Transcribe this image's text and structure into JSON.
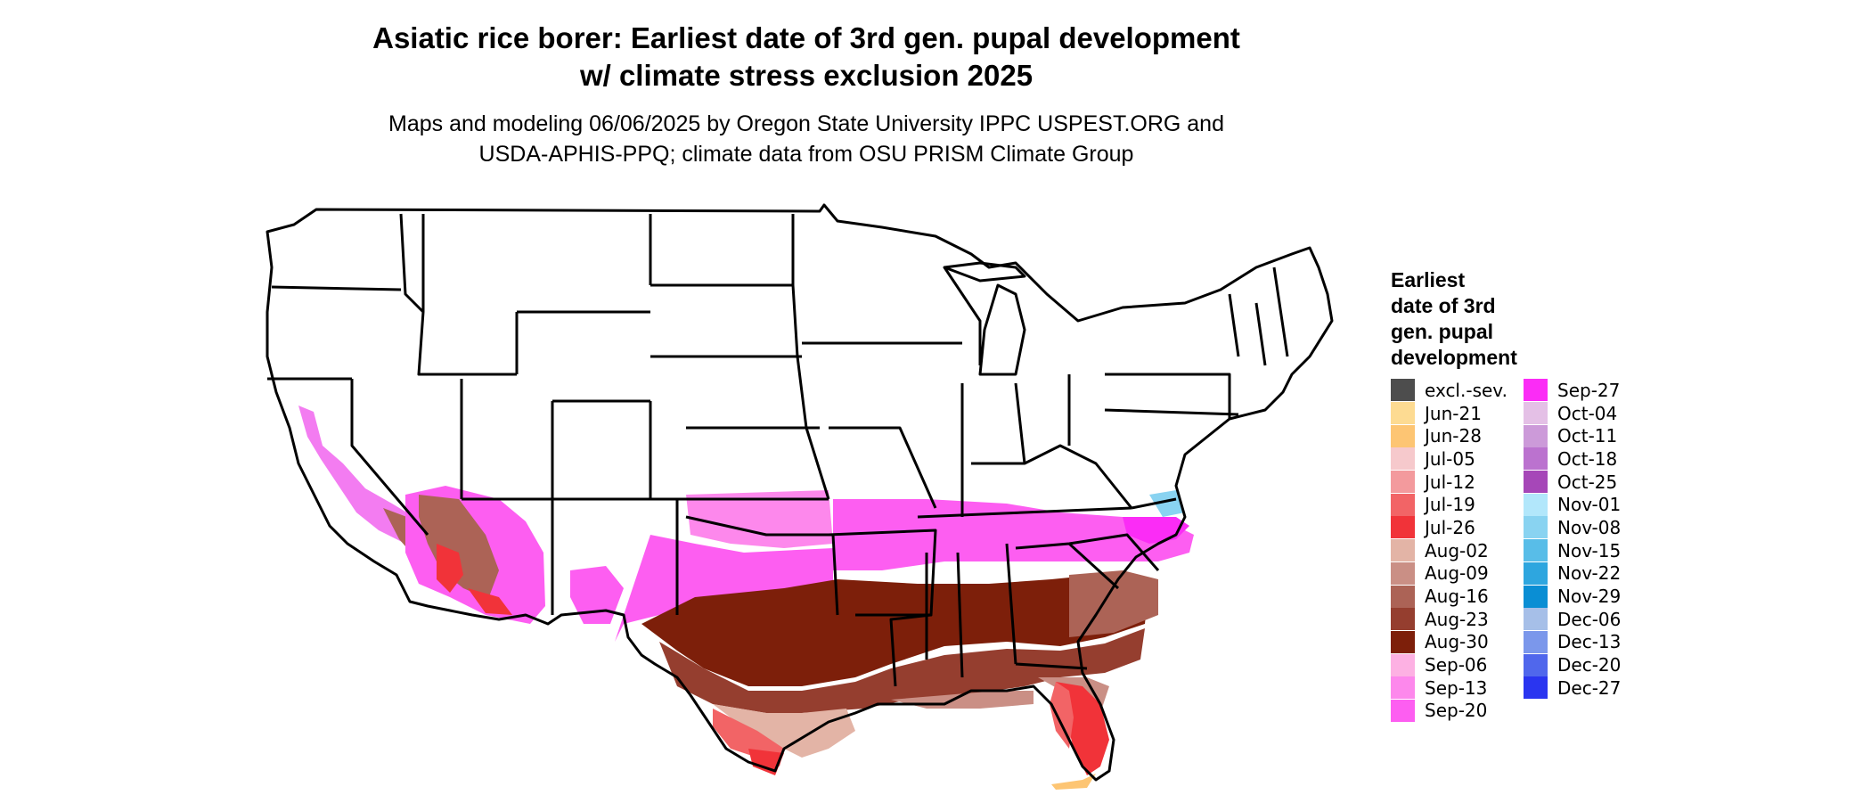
{
  "title": {
    "line1": "Asiatic rice borer: Earliest date of 3rd gen. pupal development",
    "line2": "w/ climate stress exclusion 2025"
  },
  "subtitle": {
    "line1": "Maps and modeling 06/06/2025 by Oregon State University IPPC USPEST.ORG and",
    "line2": "USDA-APHIS-PPQ; climate data from OSU PRISM Climate Group"
  },
  "legend": {
    "title_lines": [
      "Earliest",
      "date of 3rd",
      "gen. pupal",
      "development"
    ],
    "column1": [
      {
        "label": "excl.-sev.",
        "color": "#4d4d4d"
      },
      {
        "label": "Jun-21",
        "color": "#fddb92"
      },
      {
        "label": "Jun-28",
        "color": "#fdc573"
      },
      {
        "label": "Jul-05",
        "color": "#f6c9cc"
      },
      {
        "label": "Jul-12",
        "color": "#f39a9d"
      },
      {
        "label": "Jul-19",
        "color": "#f26466"
      },
      {
        "label": "Jul-26",
        "color": "#f13339"
      },
      {
        "label": "Aug-02",
        "color": "#e3b4a6"
      },
      {
        "label": "Aug-09",
        "color": "#ca8f85"
      },
      {
        "label": "Aug-16",
        "color": "#ac6356"
      },
      {
        "label": "Aug-23",
        "color": "#953e2f"
      },
      {
        "label": "Aug-30",
        "color": "#7d1f0a"
      },
      {
        "label": "Sep-06",
        "color": "#fdb1e3"
      },
      {
        "label": "Sep-13",
        "color": "#fd88ec"
      },
      {
        "label": "Sep-20",
        "color": "#fd5ef1"
      }
    ],
    "column2": [
      {
        "label": "Sep-27",
        "color": "#fb2cf6"
      },
      {
        "label": "Oct-04",
        "color": "#e4c0e6"
      },
      {
        "label": "Oct-11",
        "color": "#cc9ad9"
      },
      {
        "label": "Oct-18",
        "color": "#bb72cf"
      },
      {
        "label": "Oct-25",
        "color": "#a647b8"
      },
      {
        "label": "Nov-01",
        "color": "#b2e7fb"
      },
      {
        "label": "Nov-08",
        "color": "#89d3f1"
      },
      {
        "label": "Nov-15",
        "color": "#58bde8"
      },
      {
        "label": "Nov-22",
        "color": "#2ea6df"
      },
      {
        "label": "Nov-29",
        "color": "#0a8ed4"
      },
      {
        "label": "Dec-06",
        "color": "#a6bfe8"
      },
      {
        "label": "Dec-13",
        "color": "#7b97eb"
      },
      {
        "label": "Dec-20",
        "color": "#5067ec"
      },
      {
        "label": "Dec-27",
        "color": "#2a35f0"
      }
    ]
  }
}
